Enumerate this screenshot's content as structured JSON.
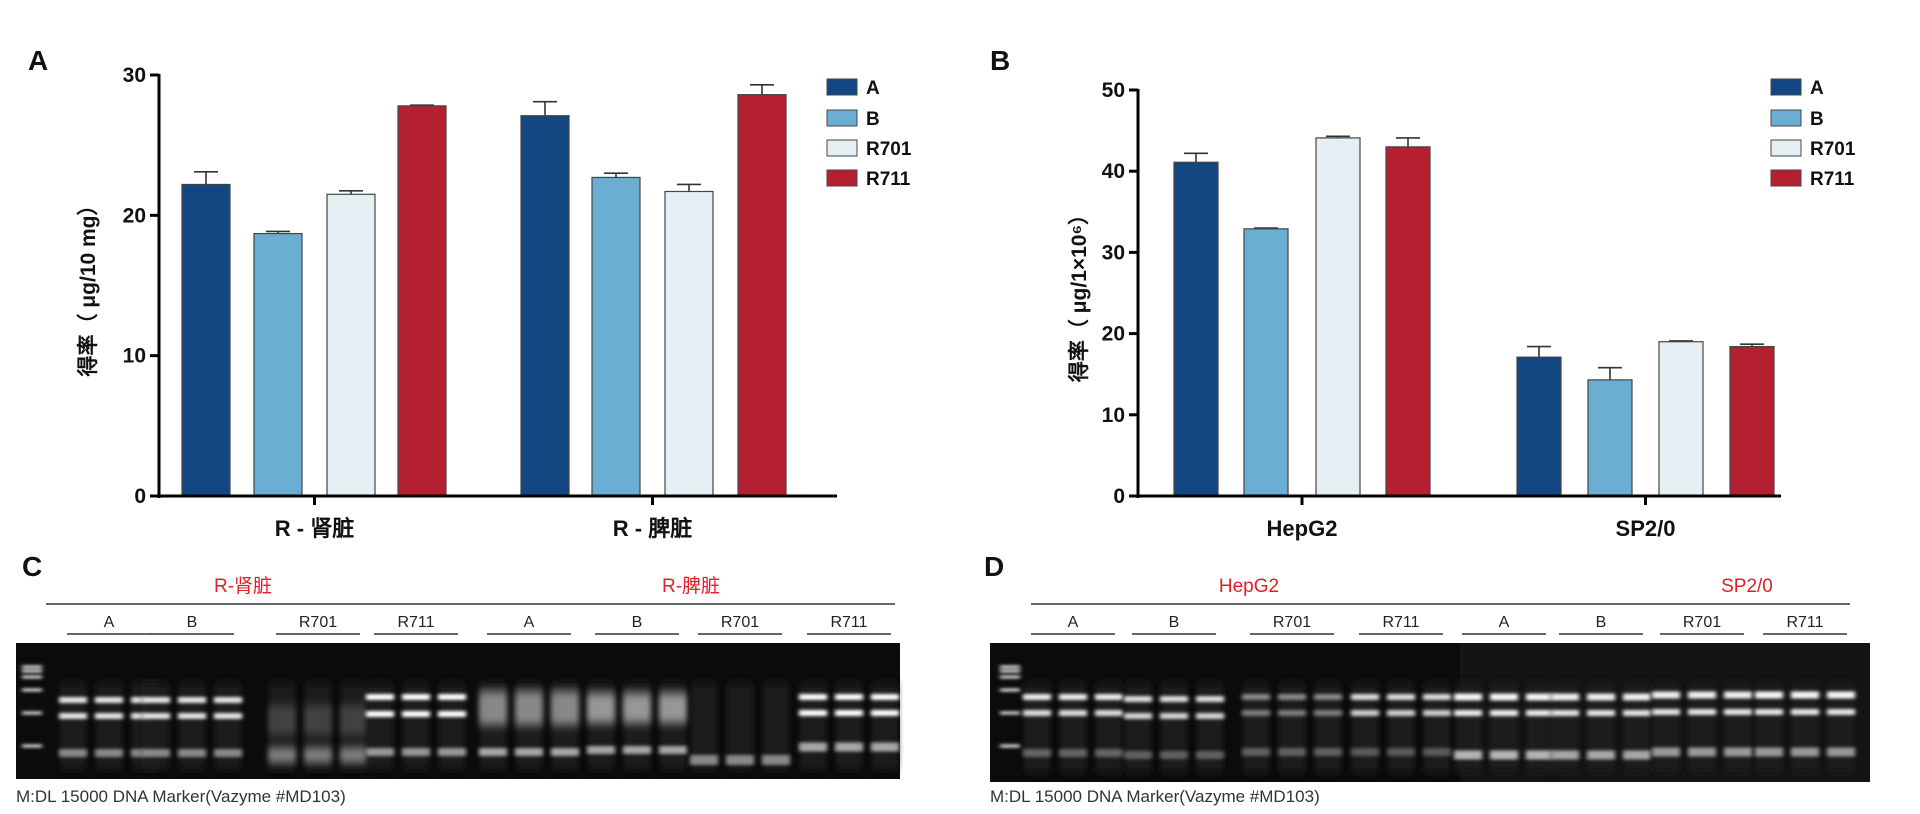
{
  "chart_data": [
    {
      "panel": "A",
      "type": "bar",
      "categories": [
        "R - 肾脏",
        "R - 脾脏"
      ],
      "ylabel": "得率（ μg/10 mg）",
      "ylim": [
        0,
        30
      ],
      "yticks": [
        0,
        10,
        20,
        30
      ],
      "grid": false,
      "legend": "top-right",
      "series": [
        {
          "name": "A",
          "color": "#134782",
          "values": [
            22.2,
            27.1
          ],
          "error": [
            0.9,
            1.0
          ]
        },
        {
          "name": "B",
          "color": "#6aaed3",
          "values": [
            18.7,
            22.7
          ],
          "error": [
            0.15,
            0.3
          ]
        },
        {
          "name": "R701",
          "color": "#e6eff3",
          "values": [
            21.5,
            21.7
          ],
          "error": [
            0.25,
            0.5
          ]
        },
        {
          "name": "R711",
          "color": "#b42030",
          "values": [
            27.8,
            28.6
          ],
          "error": [
            0.05,
            0.7
          ]
        }
      ]
    },
    {
      "panel": "B",
      "type": "bar",
      "categories": [
        "HepG2",
        "SP2/0"
      ],
      "ylabel": "得率（ μg/1×10⁶）",
      "ylim": [
        0,
        50
      ],
      "yticks": [
        0,
        10,
        20,
        30,
        40,
        50
      ],
      "grid": false,
      "legend": "top-right",
      "series": [
        {
          "name": "A",
          "color": "#134782",
          "values": [
            41.1,
            17.1
          ],
          "error": [
            1.1,
            1.3
          ]
        },
        {
          "name": "B",
          "color": "#6aaed3",
          "values": [
            32.9,
            14.3
          ],
          "error": [
            0.1,
            1.5
          ]
        },
        {
          "name": "R701",
          "color": "#e6eff3",
          "values": [
            44.1,
            19.0
          ],
          "error": [
            0.2,
            0.1
          ]
        },
        {
          "name": "R711",
          "color": "#b42030",
          "values": [
            43.0,
            18.4
          ],
          "error": [
            1.1,
            0.3
          ]
        }
      ]
    }
  ],
  "gels": [
    {
      "panel": "C",
      "headers": [
        "R-肾脏",
        "R-脾脏"
      ],
      "groups": [
        "A",
        "B",
        "R701",
        "R711",
        "A",
        "B",
        "R701",
        "R711"
      ],
      "caption": "M:DL 15000 DNA Marker(Vazyme #MD103)"
    },
    {
      "panel": "D",
      "headers": [
        "HepG2",
        "SP2/0"
      ],
      "groups": [
        "A",
        "B",
        "R701",
        "R711",
        "A",
        "B",
        "R701",
        "R711"
      ],
      "caption": "M:DL 15000 DNA Marker(Vazyme #MD103)"
    }
  ]
}
